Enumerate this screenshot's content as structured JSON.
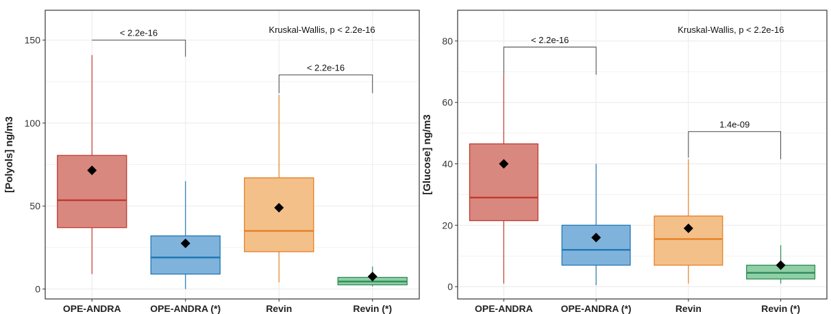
{
  "chart_data": [
    {
      "type": "box",
      "ylabel": "[Polyols] ng/m3",
      "ylim": [
        -6,
        168
      ],
      "yticks": [
        0,
        50,
        100,
        150
      ],
      "grid": true,
      "categories": [
        "OPE-ANDRA",
        "OPE-ANDRA (*)",
        "Revin",
        "Revin (*)"
      ],
      "boxes": [
        {
          "category": "OPE-ANDRA",
          "color": "#C0392B",
          "fill": "#D98880",
          "whisker_low": 9,
          "q1": 37,
          "median": 53.5,
          "q3": 80.5,
          "whisker_high": 141,
          "mean": 71.5
        },
        {
          "category": "OPE-ANDRA (*)",
          "color": "#1F77B4",
          "fill": "#7FB3DC",
          "whisker_low": 0,
          "q1": 9,
          "median": 19,
          "q3": 32,
          "whisker_high": 65,
          "mean": 27.5
        },
        {
          "category": "Revin",
          "color": "#E67E22",
          "fill": "#F3C08A",
          "whisker_low": 4,
          "q1": 22.5,
          "median": 35,
          "q3": 67,
          "whisker_high": 117,
          "mean": 49
        },
        {
          "category": "Revin (*)",
          "color": "#2E8B57",
          "fill": "#8FCFA6",
          "whisker_low": 1.5,
          "q1": 2.5,
          "median": 4.5,
          "q3": 7,
          "whisker_high": 13.5,
          "mean": 7.5
        }
      ],
      "brackets": [
        {
          "from": "OPE-ANDRA",
          "to": "OPE-ANDRA (*)",
          "y": 150,
          "left_end": 150,
          "right_end": 140,
          "label": "< 2.2e-16"
        },
        {
          "from": "Revin",
          "to": "Revin (*)",
          "y": 129,
          "left_end": 118,
          "right_end": 118,
          "label": "< 2.2e-16"
        }
      ],
      "annotation": "Kruskal-Wallis, p < 2.2e-16"
    },
    {
      "type": "box",
      "ylabel": "[Glucose] ng/m3",
      "ylim": [
        -4,
        90
      ],
      "yticks": [
        0,
        20,
        40,
        60,
        80
      ],
      "grid": true,
      "categories": [
        "OPE-ANDRA",
        "OPE-ANDRA (*)",
        "Revin",
        "Revin (*)"
      ],
      "boxes": [
        {
          "category": "OPE-ANDRA",
          "color": "#C0392B",
          "fill": "#D98880",
          "whisker_low": 1,
          "q1": 21.5,
          "median": 29,
          "q3": 46.5,
          "whisker_high": 69,
          "mean": 40
        },
        {
          "category": "OPE-ANDRA (*)",
          "color": "#1F77B4",
          "fill": "#7FB3DC",
          "whisker_low": 0.5,
          "q1": 7,
          "median": 12,
          "q3": 20,
          "whisker_high": 40,
          "mean": 16
        },
        {
          "category": "Revin",
          "color": "#E67E22",
          "fill": "#F3C08A",
          "whisker_low": 1,
          "q1": 7,
          "median": 15.5,
          "q3": 23,
          "whisker_high": 41.5,
          "mean": 19
        },
        {
          "category": "Revin (*)",
          "color": "#2E8B57",
          "fill": "#8FCFA6",
          "whisker_low": 1,
          "q1": 2.5,
          "median": 4.5,
          "q3": 7,
          "whisker_high": 13.5,
          "mean": 7
        }
      ],
      "brackets": [
        {
          "from": "OPE-ANDRA",
          "to": "OPE-ANDRA (*)",
          "y": 78,
          "left_end": 69,
          "right_end": 69,
          "label": "< 2.2e-16"
        },
        {
          "from": "Revin",
          "to": "Revin (*)",
          "y": 50.5,
          "left_end": 42,
          "right_end": 41.5,
          "label": "1.4e-09"
        }
      ],
      "annotation": "Kruskal-Wallis, p < 2.2e-16"
    }
  ]
}
